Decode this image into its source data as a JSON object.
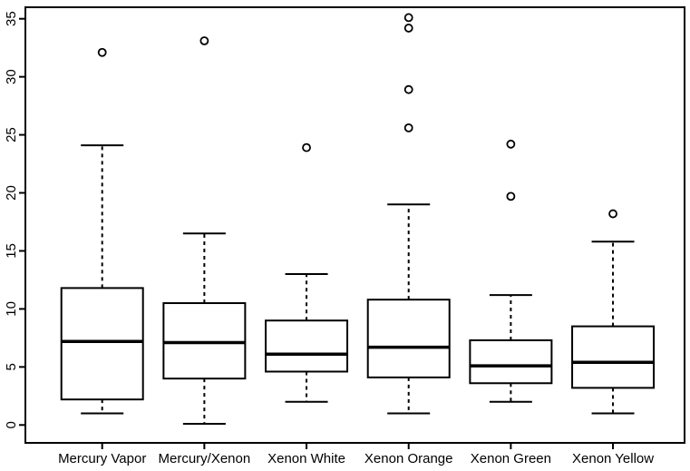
{
  "chart_data": {
    "type": "boxplot",
    "title": "",
    "xlabel": "",
    "ylabel": "",
    "grid": false,
    "legend": null,
    "categories": [
      "Mercury Vapor",
      "Mercury/Xenon",
      "Xenon White",
      "Xenon Orange",
      "Xenon Green",
      "Xenon Yellow"
    ],
    "series": [
      {
        "name": "Mercury Vapor",
        "whisker_low": 1.0,
        "q1": 2.2,
        "median": 7.2,
        "q3": 11.8,
        "whisker_high": 24.1,
        "outliers": [
          32.1
        ]
      },
      {
        "name": "Mercury/Xenon",
        "whisker_low": 0.1,
        "q1": 4.0,
        "median": 7.1,
        "q3": 10.5,
        "whisker_high": 16.5,
        "outliers": [
          33.1
        ]
      },
      {
        "name": "Xenon White",
        "whisker_low": 2.0,
        "q1": 4.6,
        "median": 6.1,
        "q3": 9.0,
        "whisker_high": 13.0,
        "outliers": [
          23.9
        ]
      },
      {
        "name": "Xenon Orange",
        "whisker_low": 1.0,
        "q1": 4.1,
        "median": 6.7,
        "q3": 10.8,
        "whisker_high": 19.0,
        "outliers": [
          25.6,
          28.9,
          34.2,
          35.1
        ]
      },
      {
        "name": "Xenon Green",
        "whisker_low": 2.0,
        "q1": 3.6,
        "median": 5.1,
        "q3": 7.3,
        "whisker_high": 11.2,
        "outliers": [
          19.7,
          24.2
        ]
      },
      {
        "name": "Xenon Yellow",
        "whisker_low": 1.0,
        "q1": 3.2,
        "median": 5.4,
        "q3": 8.5,
        "whisker_high": 15.8,
        "outliers": [
          18.2
        ]
      }
    ],
    "y_ticks": [
      0,
      5,
      10,
      15,
      20,
      25,
      30,
      35
    ],
    "ylim": [
      -1.5,
      36.0
    ],
    "colors": {
      "line": "#000000",
      "background": "#ffffff"
    }
  }
}
